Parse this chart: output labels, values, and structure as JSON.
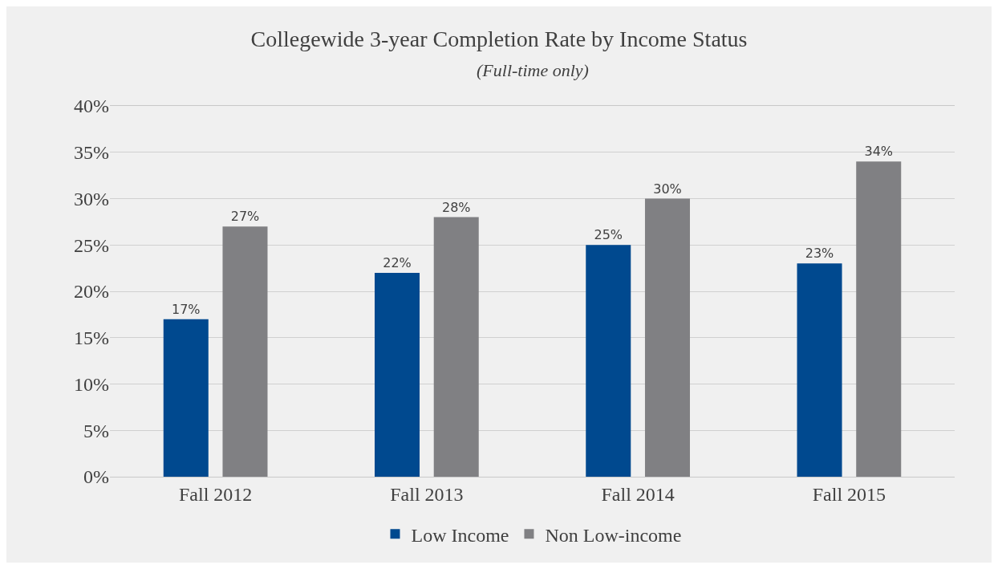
{
  "chart_data": {
    "type": "bar",
    "title": "Collegewide 3-year Completion Rate by Income Status",
    "subtitle": "(Full-time only)",
    "categories": [
      "Fall 2012",
      "Fall 2013",
      "Fall 2014",
      "Fall 2015"
    ],
    "series": [
      {
        "name": "Low Income",
        "color": "#00498f",
        "values": [
          17,
          22,
          25,
          23
        ],
        "value_labels": [
          "17%",
          "22%",
          "25%",
          "23%"
        ]
      },
      {
        "name": "Non Low-income",
        "color": "#808083",
        "values": [
          27,
          28,
          30,
          34
        ],
        "value_labels": [
          "27%",
          "28%",
          "30%",
          "34%"
        ]
      }
    ],
    "ylim": [
      0,
      40
    ],
    "yticks": [
      {
        "value": 0,
        "label": "0%"
      },
      {
        "value": 5,
        "label": "5%"
      },
      {
        "value": 10,
        "label": "10%"
      },
      {
        "value": 15,
        "label": "15%"
      },
      {
        "value": 20,
        "label": "20%"
      },
      {
        "value": 25,
        "label": "25%"
      },
      {
        "value": 30,
        "label": "30%"
      },
      {
        "value": 35,
        "label": "35%"
      },
      {
        "value": 40,
        "label": "40%"
      }
    ],
    "grid": "y",
    "legend": "bottom"
  }
}
